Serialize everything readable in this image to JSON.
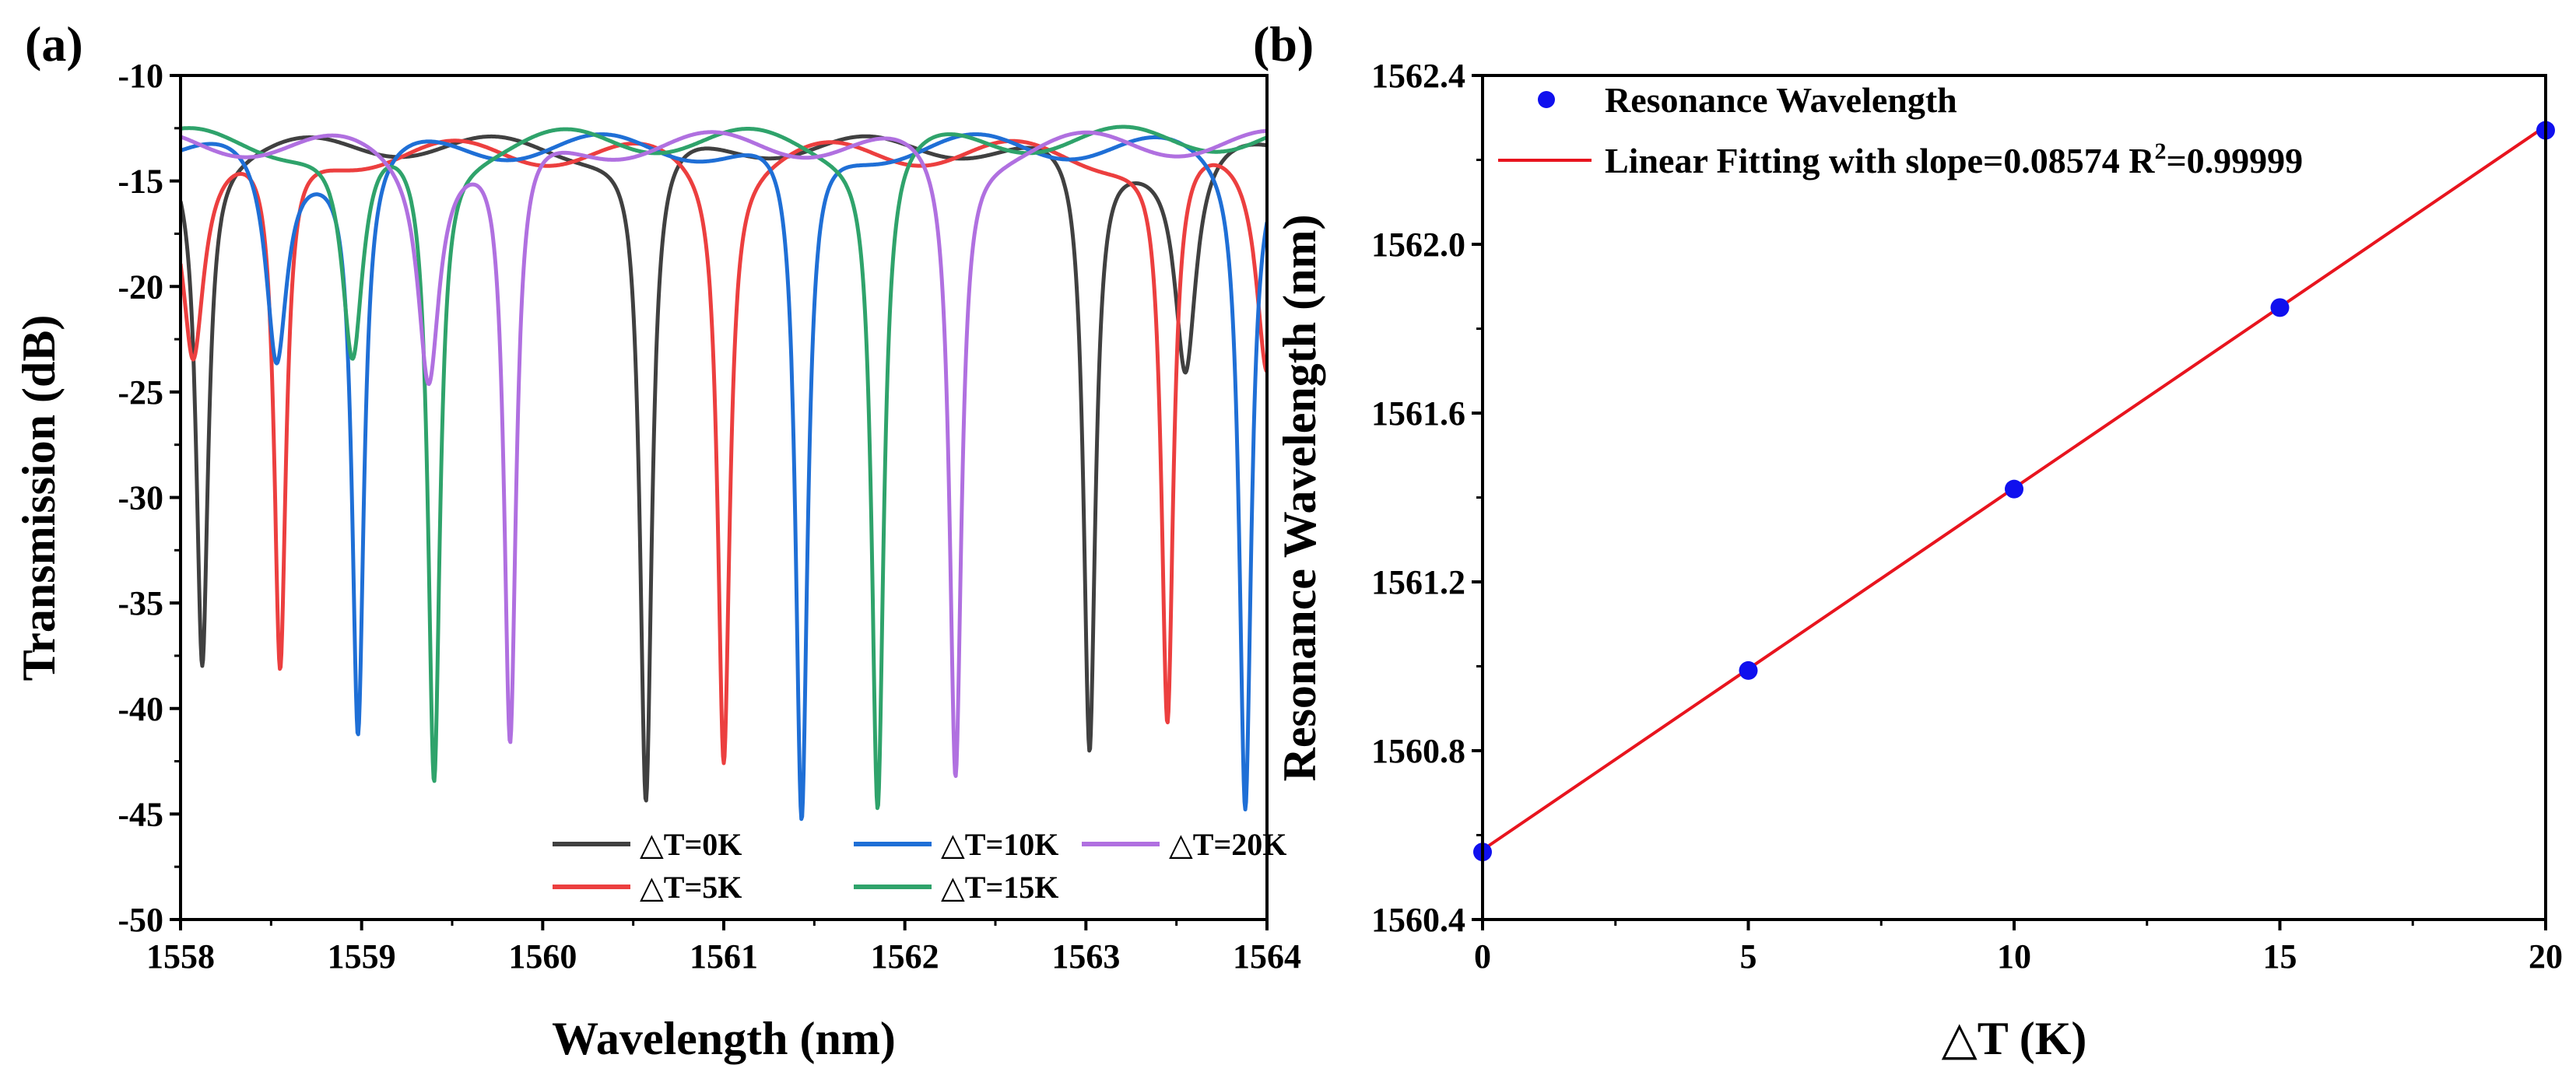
{
  "chart_data": [
    {
      "panel": "(a)",
      "type": "line",
      "xlabel": "Wavelength (nm)",
      "ylabel": "Transmission (dB)",
      "xlim": [
        1558,
        1564
      ],
      "ylim": [
        -50,
        -10
      ],
      "xticks": [
        1558,
        1559,
        1560,
        1561,
        1562,
        1563,
        1564
      ],
      "yticks": [
        -10,
        -15,
        -20,
        -25,
        -30,
        -35,
        -40,
        -45,
        -50
      ],
      "legend_position": "bottom-right",
      "series": [
        {
          "name": "△T=0K",
          "color": "#404040",
          "baseline": -13.3,
          "ripple": 0.5,
          "dips": [
            {
              "x": 1558.12,
              "depth": -37.5,
              "width": 0.04
            },
            {
              "x": 1560.57,
              "depth": -44.6,
              "width": 0.04
            },
            {
              "x": 1563.02,
              "depth": -42.0,
              "width": 0.04
            },
            {
              "x": 1563.55,
              "depth": -23.8,
              "width": 0.07
            }
          ]
        },
        {
          "name": "△T=5K",
          "color": "#ec3f3f",
          "baseline": -13.6,
          "ripple": 0.6,
          "dips": [
            {
              "x": 1558.07,
              "depth": -22.8,
              "width": 0.07
            },
            {
              "x": 1558.55,
              "depth": -38.5,
              "width": 0.04
            },
            {
              "x": 1561.0,
              "depth": -42.0,
              "width": 0.04
            },
            {
              "x": 1563.45,
              "depth": -40.8,
              "width": 0.04
            },
            {
              "x": 1564.0,
              "depth": -23.5,
              "width": 0.07
            }
          ]
        },
        {
          "name": "△T=10K",
          "color": "#1f6fd6",
          "baseline": -13.3,
          "ripple": 0.6,
          "dips": [
            {
              "x": 1558.53,
              "depth": -23.4,
              "width": 0.07
            },
            {
              "x": 1558.98,
              "depth": -40.8,
              "width": 0.04
            },
            {
              "x": 1561.43,
              "depth": -45.8,
              "width": 0.04
            },
            {
              "x": 1563.88,
              "depth": -44.2,
              "width": 0.04
            }
          ]
        },
        {
          "name": "△T=15K",
          "color": "#2fa36b",
          "baseline": -13.0,
          "ripple": 0.6,
          "dips": [
            {
              "x": 1558.95,
              "depth": -23.6,
              "width": 0.07
            },
            {
              "x": 1559.4,
              "depth": -43.0,
              "width": 0.04
            },
            {
              "x": 1561.85,
              "depth": -44.5,
              "width": 0.04
            }
          ]
        },
        {
          "name": "△T=20K",
          "color": "#b070e0",
          "baseline": -13.2,
          "ripple": 0.6,
          "dips": [
            {
              "x": 1559.37,
              "depth": -23.8,
              "width": 0.07
            },
            {
              "x": 1559.82,
              "depth": -41.9,
              "width": 0.04
            },
            {
              "x": 1562.28,
              "depth": -43.0,
              "width": 0.04
            }
          ]
        }
      ]
    },
    {
      "panel": "(b)",
      "type": "scatter",
      "xlabel": "△T (K)",
      "ylabel": "Resonance Wavelength (nm)",
      "xlim": [
        0,
        20
      ],
      "ylim": [
        1560.4,
        1562.4
      ],
      "xticks": [
        0,
        5,
        10,
        15,
        20
      ],
      "yticks": [
        "1560.4",
        "1560.8",
        "1561.2",
        "1561.6",
        "1562.0",
        "1562.4"
      ],
      "legend_position": "top-left",
      "series": [
        {
          "name": "Resonance Wavelength",
          "color": "#1010ee",
          "x": [
            0,
            5,
            10,
            15,
            20
          ],
          "y": [
            1560.56,
            1560.99,
            1561.42,
            1561.85,
            1562.27
          ]
        }
      ],
      "fit": {
        "name_prefix": "Linear Fitting with slope=0.08574 R",
        "name_sup": "2",
        "name_suffix": "=0.99999",
        "color": "#e8141e",
        "slope": 0.08574,
        "intercept": 1560.565,
        "r2": 0.99999
      }
    }
  ]
}
